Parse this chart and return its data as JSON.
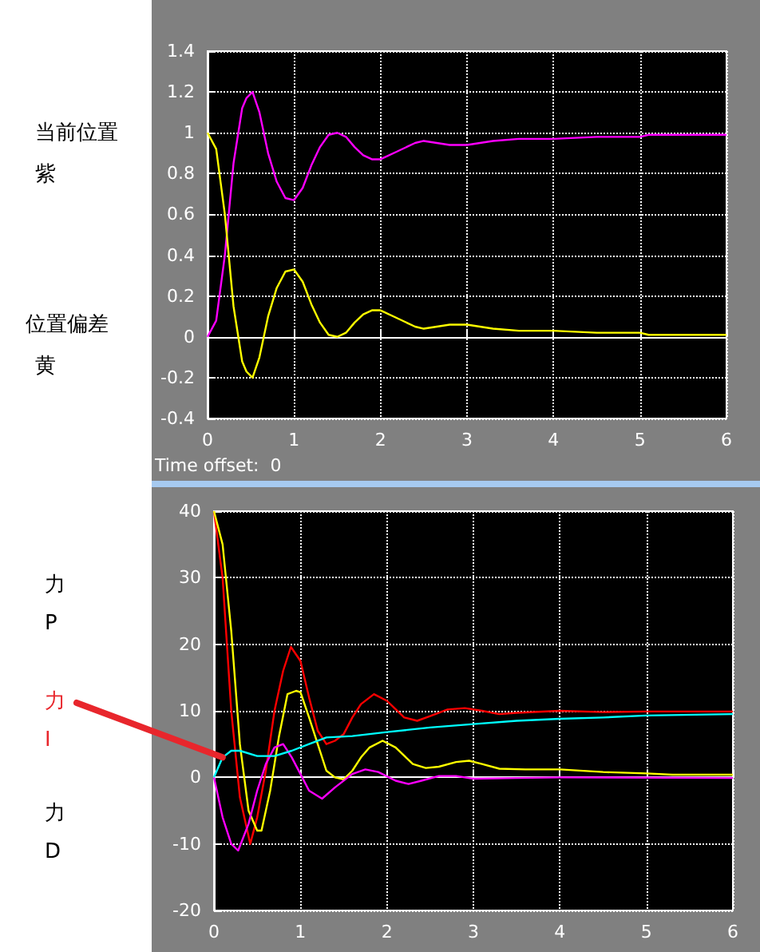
{
  "chart_data": [
    {
      "type": "line",
      "line_style": "solid",
      "grid": true,
      "xlim": [
        0,
        6
      ],
      "xticks": [
        0,
        1,
        2,
        3,
        4,
        5,
        6
      ],
      "ylim": [
        -0.4,
        1.4
      ],
      "yticks": [
        -0.4,
        -0.2,
        0,
        0.2,
        0.4,
        0.6,
        0.8,
        1,
        1.2,
        1.4
      ],
      "annotations": [
        "当前位置",
        "紫",
        "位置偏差",
        "黄",
        "Time offset:  0"
      ],
      "series": [
        {
          "color": "#ff00ff",
          "x": [
            0,
            0.1,
            0.2,
            0.3,
            0.4,
            0.45,
            0.52,
            0.6,
            0.7,
            0.8,
            0.9,
            1.0,
            1.1,
            1.2,
            1.3,
            1.4,
            1.5,
            1.6,
            1.7,
            1.8,
            1.9,
            2.0,
            2.2,
            2.4,
            2.5,
            2.8,
            3.0,
            3.3,
            3.6,
            4.0,
            4.5,
            5.0,
            5.1,
            6
          ],
          "values": [
            0,
            0.08,
            0.4,
            0.85,
            1.12,
            1.17,
            1.2,
            1.1,
            0.9,
            0.76,
            0.68,
            0.67,
            0.73,
            0.84,
            0.93,
            0.99,
            1.0,
            0.98,
            0.93,
            0.89,
            0.87,
            0.87,
            0.91,
            0.95,
            0.96,
            0.94,
            0.94,
            0.96,
            0.97,
            0.97,
            0.98,
            0.98,
            0.99,
            0.99
          ]
        },
        {
          "color": "#ffff00",
          "x": [
            0,
            0.1,
            0.2,
            0.3,
            0.4,
            0.45,
            0.52,
            0.6,
            0.7,
            0.8,
            0.9,
            1.0,
            1.1,
            1.2,
            1.3,
            1.4,
            1.5,
            1.6,
            1.7,
            1.8,
            1.9,
            2.0,
            2.2,
            2.4,
            2.5,
            2.8,
            3.0,
            3.3,
            3.6,
            4.0,
            4.5,
            5.0,
            5.1,
            6
          ],
          "values": [
            1,
            0.92,
            0.6,
            0.15,
            -0.12,
            -0.17,
            -0.2,
            -0.1,
            0.1,
            0.24,
            0.32,
            0.33,
            0.27,
            0.16,
            0.07,
            0.01,
            0,
            0.02,
            0.07,
            0.11,
            0.13,
            0.13,
            0.09,
            0.05,
            0.04,
            0.06,
            0.06,
            0.04,
            0.03,
            0.03,
            0.02,
            0.02,
            0.01,
            0.01
          ]
        }
      ]
    },
    {
      "type": "line",
      "line_style": "solid",
      "grid": true,
      "xlim": [
        0,
        6
      ],
      "xticks": [
        0,
        1,
        2,
        3,
        4,
        5,
        6
      ],
      "ylim": [
        -20,
        40
      ],
      "yticks": [
        -20,
        -10,
        0,
        10,
        20,
        30,
        40
      ],
      "annotations": [
        "力\nP",
        {
          "text": "力\nI",
          "x": 0.1,
          "y": 3
        },
        "力\nD"
      ],
      "series": [
        {
          "color": "#ff0000",
          "x": [
            0,
            0.1,
            0.2,
            0.3,
            0.42,
            0.5,
            0.6,
            0.7,
            0.8,
            0.89,
            1.0,
            1.1,
            1.2,
            1.3,
            1.4,
            1.5,
            1.6,
            1.7,
            1.85,
            2.0,
            2.2,
            2.35,
            2.5,
            2.7,
            2.9,
            3.1,
            3.3,
            3.5,
            4,
            4.5,
            5,
            6
          ],
          "values": [
            40,
            30,
            10,
            -3,
            -10,
            -6,
            1,
            10,
            16,
            19.6,
            17.5,
            12,
            7,
            5,
            5.5,
            6.5,
            9,
            11,
            12.5,
            11.5,
            9,
            8.5,
            9.2,
            10.2,
            10.4,
            10,
            9.5,
            9.7,
            10,
            9.8,
            9.9,
            9.9
          ]
        },
        {
          "color": "#ffff00",
          "x": [
            0,
            0.1,
            0.2,
            0.3,
            0.4,
            0.5,
            0.55,
            0.65,
            0.75,
            0.85,
            0.95,
            1.0,
            1.1,
            1.2,
            1.3,
            1.4,
            1.5,
            1.6,
            1.7,
            1.8,
            1.95,
            2.1,
            2.3,
            2.45,
            2.6,
            2.8,
            2.95,
            3.1,
            3.3,
            3.6,
            4,
            4.5,
            5,
            5.3,
            6
          ],
          "values": [
            40,
            35,
            22,
            5,
            -5,
            -8,
            -8,
            -2,
            6,
            12.5,
            13,
            12.8,
            9,
            5,
            1,
            0,
            -0.3,
            1,
            3,
            4.5,
            5.5,
            4.5,
            2,
            1.4,
            1.6,
            2.3,
            2.5,
            2,
            1.3,
            1.2,
            1.2,
            0.8,
            0.6,
            0.4,
            0.4
          ]
        },
        {
          "color": "#ff00ff",
          "x": [
            0,
            0.1,
            0.2,
            0.28,
            0.4,
            0.5,
            0.6,
            0.7,
            0.8,
            0.9,
            1.0,
            1.1,
            1.25,
            1.4,
            1.6,
            1.75,
            1.9,
            2.1,
            2.25,
            2.4,
            2.6,
            2.8,
            3.0,
            3.5,
            4,
            6
          ],
          "values": [
            0,
            -6,
            -10,
            -11,
            -7,
            -2,
            2,
            4.5,
            5,
            3,
            0.5,
            -2,
            -3.2,
            -1.5,
            0.5,
            1.2,
            0.8,
            -0.5,
            -1,
            -0.5,
            0.2,
            0.2,
            -0.2,
            -0.1,
            0,
            -0.1
          ]
        },
        {
          "color": "#00ffff",
          "x": [
            0,
            0.1,
            0.2,
            0.3,
            0.5,
            0.7,
            0.9,
            1.1,
            1.3,
            1.6,
            2,
            2.5,
            3,
            3.5,
            4,
            4.5,
            5,
            6
          ],
          "values": [
            0,
            3,
            4,
            4,
            3.2,
            3.2,
            4,
            5,
            6,
            6.2,
            6.8,
            7.5,
            8,
            8.5,
            8.8,
            9,
            9.3,
            9.5
          ]
        }
      ]
    }
  ]
}
